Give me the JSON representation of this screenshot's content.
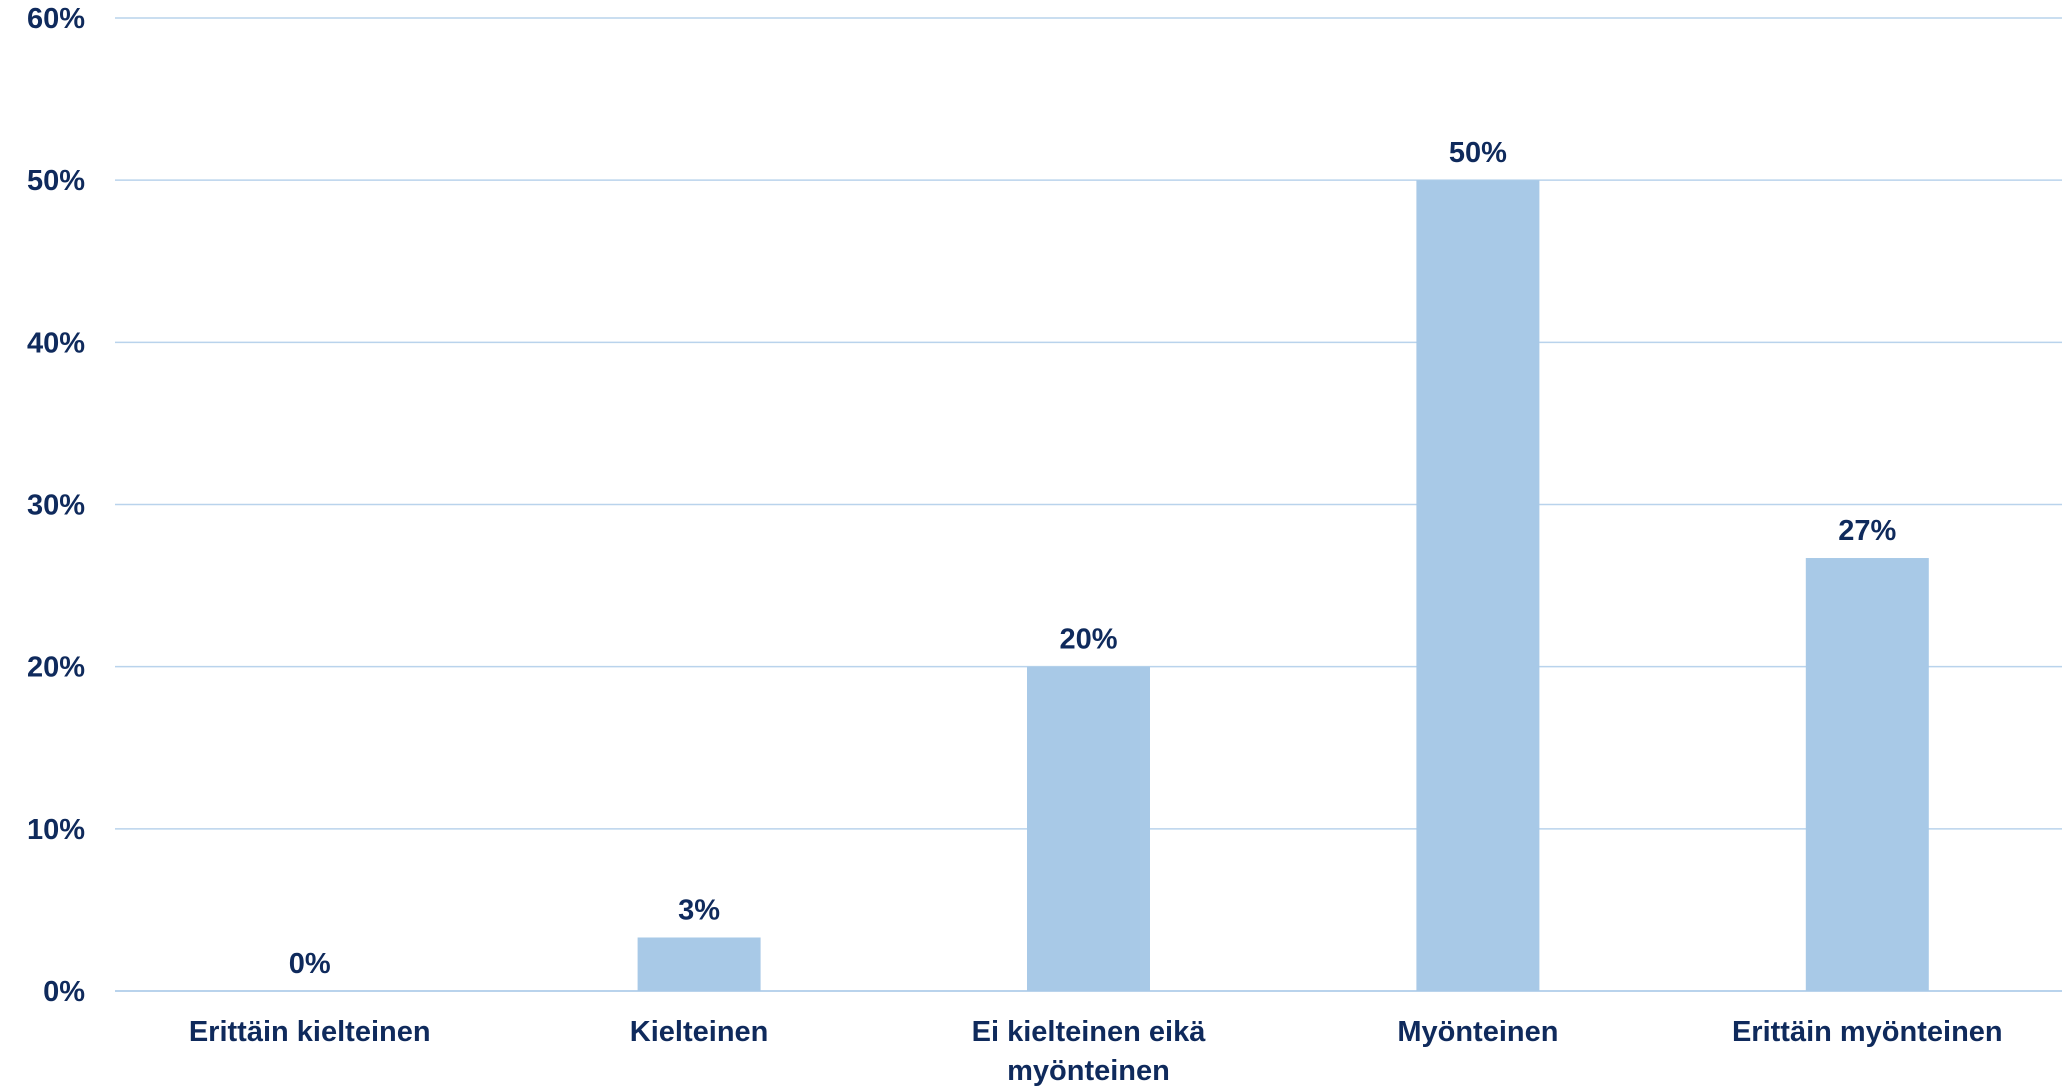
{
  "chart_data": {
    "type": "bar",
    "title": "",
    "xlabel": "",
    "ylabel": "",
    "categories": [
      [
        "Erittäin kielteinen"
      ],
      [
        "Kielteinen"
      ],
      [
        "Ei kielteinen eikä",
        "myönteinen"
      ],
      [
        "Myönteinen"
      ],
      [
        "Erittäin myönteinen"
      ]
    ],
    "values": [
      0,
      3.3,
      20,
      50,
      26.7
    ],
    "data_labels": [
      "0%",
      "3%",
      "20%",
      "50%",
      "27%"
    ],
    "ylim": [
      0,
      60
    ],
    "yticks": [
      0,
      10,
      20,
      30,
      40,
      50,
      60
    ],
    "ytick_labels": [
      "0%",
      "10%",
      "20%",
      "30%",
      "40%",
      "50%",
      "60%"
    ],
    "grid": true,
    "legend": "none",
    "colors": {
      "bar": "#a8c9e7",
      "text": "#0f2a5c",
      "grid": "#b9d3ec"
    }
  }
}
